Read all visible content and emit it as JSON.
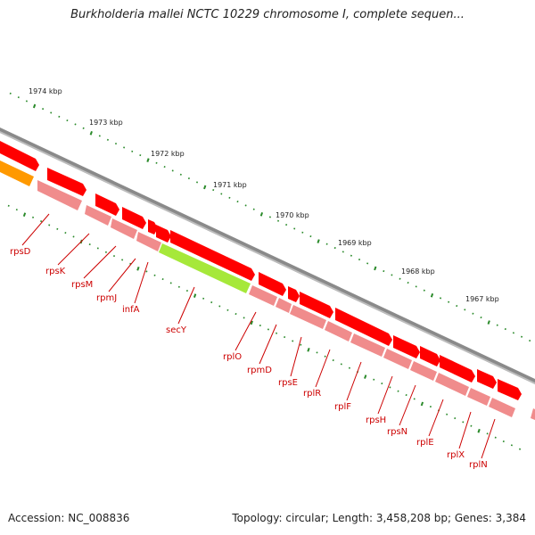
{
  "title": "Burkholderia mallei NCTC 10229 chromosome I, complete sequen...",
  "accession": "Accession: NC_008836",
  "topology": "Topology: circular; Length: 3,458,208 bp; Genes: 3,384",
  "colors": {
    "backbone": "#8a8a8a",
    "cds_red": "#ff0000",
    "cds_pink": "#f08c8c",
    "cds_orange": "#ff9900",
    "highlight_green": "#a6e83a",
    "tick_green": "#2a8a2a",
    "label_red": "#cc0000"
  },
  "scale_labels": [
    "1974 kbp",
    "1973 kbp",
    "1972 kbp",
    "1971 kbp",
    "1970 kbp",
    "1969 kbp",
    "1968 kbp",
    "1967 kbp"
  ],
  "genes": [
    "rpsD",
    "rpsK",
    "rpsM",
    "rpmJ",
    "infA",
    "secY",
    "rplO",
    "rpmD",
    "rpsE",
    "rplR",
    "rplF",
    "rpsH",
    "rpsN",
    "rplE",
    "rplX",
    "rplN"
  ],
  "highlighted_gene": "secY"
}
